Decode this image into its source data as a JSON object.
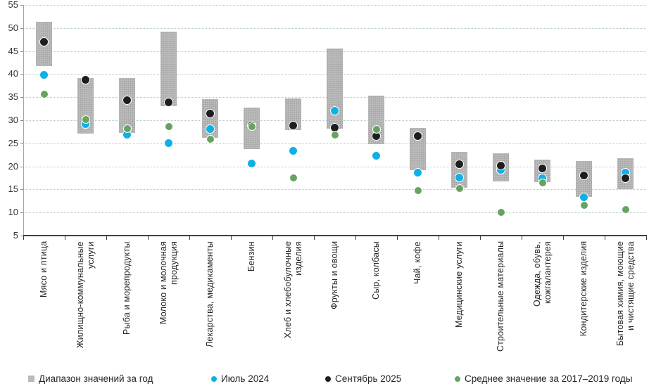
{
  "chart_data": {
    "type": "range-dot",
    "title": "",
    "xlabel": "",
    "ylabel": "",
    "ylim": [
      5,
      55
    ],
    "ytick_step": 5,
    "grid": true,
    "legend_position": "bottom",
    "categories": [
      "Мясо и птица",
      "Жилищно-коммунальные\nуслуги",
      "Рыба и морепродукты",
      "Молоко и молочная\nпродукция",
      "Лекарства, медикаменты",
      "Бензин",
      "Хлеб и хлебобулочные\nизделия",
      "Фрукты и овощи",
      "Сыр, колбасы",
      "Чай, кофе",
      "Медицинские услуги",
      "Строительные материалы",
      "Одежда, обувь,\nкожгалантерея",
      "Кондитерские изделия",
      "Бытовая химия, моющие\nи чистящие средства"
    ],
    "series": [
      {
        "name": "Диапазон значений за год",
        "kind": "range-bar",
        "color": "#b9b9b9",
        "ranges": [
          [
            41.8,
            51.3
          ],
          [
            27.1,
            39.1
          ],
          [
            27.3,
            39.1
          ],
          [
            33.0,
            49.2
          ],
          [
            26.2,
            34.5
          ],
          [
            23.7,
            32.7
          ],
          [
            27.9,
            34.8
          ],
          [
            28.1,
            45.6
          ],
          [
            24.8,
            35.3
          ],
          [
            19.2,
            28.3
          ],
          [
            15.3,
            23.2
          ],
          [
            16.7,
            22.9
          ],
          [
            16.6,
            21.5
          ],
          [
            13.4,
            21.1
          ],
          [
            15.1,
            21.7
          ]
        ]
      },
      {
        "name": "Июль 2024",
        "kind": "dot",
        "color": "#0fb0e6",
        "dot_size": 10,
        "values": [
          39.8,
          29.1,
          26.8,
          25.1,
          28.1,
          20.7,
          23.4,
          32.0,
          22.3,
          18.6,
          17.6,
          19.2,
          17.5,
          13.3,
          18.7
        ]
      },
      {
        "name": "Сентябрь 2025",
        "kind": "dot",
        "color": "#1e1e1e",
        "dot_size": 10,
        "values": [
          47.0,
          38.7,
          34.4,
          33.9,
          31.4,
          28.9,
          28.8,
          28.4,
          26.5,
          26.5,
          20.5,
          20.1,
          19.5,
          18.0,
          17.5
        ]
      },
      {
        "name": "Среднее значение за 2017–2019 годы",
        "kind": "dot",
        "color": "#66a361",
        "dot_size": 9,
        "values": [
          35.6,
          30.2,
          28.1,
          28.7,
          25.9,
          28.7,
          17.5,
          26.8,
          28.0,
          14.7,
          15.2,
          10.1,
          16.5,
          11.5,
          10.7
        ]
      }
    ]
  }
}
